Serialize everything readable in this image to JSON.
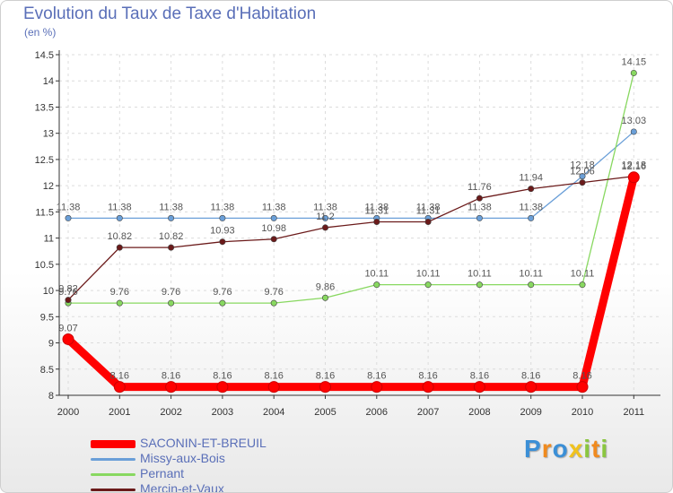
{
  "chart_data": {
    "type": "line",
    "title": "Evolution du Taux de Taxe d'Habitation",
    "ylabel": "(en %)",
    "xlabel": "",
    "categories": [
      "2000",
      "2001",
      "2002",
      "2003",
      "2004",
      "2005",
      "2006",
      "2007",
      "2008",
      "2009",
      "2010",
      "2011"
    ],
    "ylim": [
      8,
      14.5
    ],
    "yticks": [
      "8",
      "8.5",
      "9",
      "9.5",
      "10",
      "10.5",
      "11",
      "11.5",
      "12",
      "12.5",
      "13",
      "13.5",
      "14",
      "14.5"
    ],
    "grid": true,
    "legend_position": "bottom-left",
    "series": [
      {
        "name": "SACONIN-ET-BREUIL",
        "color": "#ff0000",
        "values": [
          9.07,
          8.16,
          8.16,
          8.16,
          8.16,
          8.16,
          8.16,
          8.16,
          8.16,
          8.16,
          8.16,
          12.16
        ],
        "labels": [
          "9.07",
          "8.16",
          "8.16",
          "8.16",
          "8.16",
          "8.16",
          "8.16",
          "8.16",
          "8.16",
          "8.16",
          "8.16",
          "12.16"
        ]
      },
      {
        "name": "Missy-aux-Bois",
        "color": "#6a9fd8",
        "values": [
          11.38,
          11.38,
          11.38,
          11.38,
          11.38,
          11.38,
          11.38,
          11.38,
          11.38,
          11.38,
          12.18,
          13.03
        ],
        "labels": [
          "11.38",
          "11.38",
          "11.38",
          "11.38",
          "11.38",
          "11.38",
          "11.38",
          "11.38",
          "11.38",
          "11.38",
          "12.18",
          "13.03"
        ]
      },
      {
        "name": "Pernant",
        "color": "#88d860",
        "values": [
          9.76,
          9.76,
          9.76,
          9.76,
          9.76,
          9.86,
          10.11,
          10.11,
          10.11,
          10.11,
          10.11,
          14.15
        ],
        "labels": [
          "9.76",
          "9.76",
          "9.76",
          "9.76",
          "9.76",
          "9.86",
          "10.11",
          "10.11",
          "10.11",
          "10.11",
          "10.11",
          "14.15"
        ]
      },
      {
        "name": "Mercin-et-Vaux",
        "color": "#6b1a1a",
        "values": [
          9.82,
          10.82,
          10.82,
          10.93,
          10.98,
          11.2,
          11.31,
          11.31,
          11.76,
          11.94,
          12.06,
          12.18
        ],
        "labels": [
          "9.82",
          "10.82",
          "10.82",
          "10.93",
          "10.98",
          "11.2",
          "11.31",
          "11.31",
          "11.76",
          "11.94",
          "12.06",
          "12.18"
        ]
      }
    ]
  },
  "branding": {
    "letters": [
      "P",
      "r",
      "o",
      "x",
      "i",
      "t",
      "i"
    ],
    "colors": [
      "#3b8fd6",
      "#f08a1e",
      "#3b8fd6",
      "#f0c21e",
      "#8ac640",
      "#f08a1e",
      "#8ac640"
    ]
  }
}
